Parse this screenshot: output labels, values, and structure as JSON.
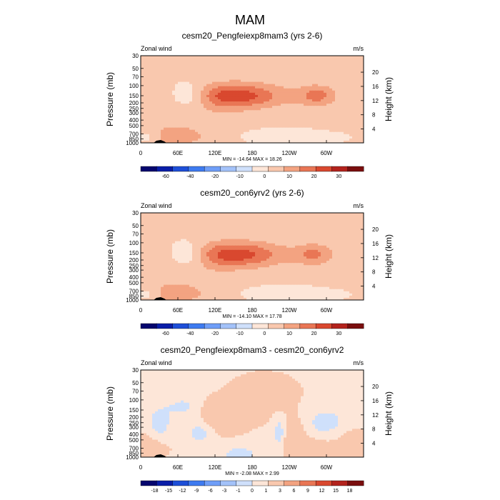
{
  "figure": {
    "title": "MAM"
  },
  "chart_data": [
    {
      "type": "heatmap",
      "title": "cesm20_Pengfeiexp8mam3 (yrs 2-6)",
      "left_label": "Zonal wind",
      "right_label": "m/s",
      "ylabel": "Pressure (mb)",
      "ylabel_right": "Height (km)",
      "x_ticks": [
        "0",
        "60E",
        "120E",
        "180",
        "120W",
        "60W"
      ],
      "y_ticks": [
        "30",
        "50",
        "70",
        "100",
        "150",
        "200",
        "250",
        "300",
        "400",
        "500",
        "700",
        "850",
        "1000"
      ],
      "height_ticks": [
        "4",
        "8",
        "12",
        "16",
        "20"
      ],
      "stats": "MIN = -14.64  MAX =  18.26",
      "colorbar_labels": [
        "-60",
        "-40",
        "-20",
        "-10",
        "0",
        "10",
        "20",
        "30"
      ],
      "features": [
        {
          "lon": 150,
          "p": 150,
          "lonw": 55,
          "lpw": 0.36,
          "amp": 18
        },
        {
          "lon": 285,
          "p": 150,
          "lonw": 22,
          "lpw": 0.3,
          "amp": 11
        },
        {
          "lon": 55,
          "p": 500,
          "lonw": 70,
          "lpw": 0.55,
          "amp": 4
        },
        {
          "lon": 60,
          "p": 800,
          "lonw": 30,
          "lpw": 0.2,
          "amp": 6
        },
        {
          "lon": 80,
          "p": 150,
          "lonw": 22,
          "lpw": 0.35,
          "amp": -10
        },
        {
          "lon": 260,
          "p": 820,
          "lonw": 40,
          "lpw": 0.15,
          "amp": -4
        },
        {
          "lon": 10,
          "p": 780,
          "lonw": 14,
          "lpw": 0.2,
          "amp": -5
        },
        {
          "lon": 180,
          "p": 700,
          "lonw": 70,
          "lpw": 0.3,
          "amp": -1.5
        }
      ]
    },
    {
      "type": "heatmap",
      "title": "cesm20_con6yrv2 (yrs 2-6)",
      "left_label": "Zonal wind",
      "right_label": "m/s",
      "ylabel": "Pressure (mb)",
      "ylabel_right": "Height (km)",
      "x_ticks": [
        "0",
        "60E",
        "120E",
        "180",
        "120W",
        "60W"
      ],
      "y_ticks": [
        "30",
        "50",
        "70",
        "100",
        "150",
        "200",
        "250",
        "300",
        "400",
        "500",
        "700",
        "850",
        "1000"
      ],
      "height_ticks": [
        "4",
        "8",
        "12",
        "16",
        "20"
      ],
      "stats": "MIN = -14.10  MAX =  17.78",
      "colorbar_labels": [
        "-60",
        "-40",
        "-20",
        "-10",
        "0",
        "10",
        "20",
        "30"
      ],
      "features": [
        {
          "lon": 150,
          "p": 160,
          "lonw": 55,
          "lpw": 0.36,
          "amp": 17.5
        },
        {
          "lon": 280,
          "p": 160,
          "lonw": 22,
          "lpw": 0.3,
          "amp": 10
        },
        {
          "lon": 55,
          "p": 500,
          "lonw": 70,
          "lpw": 0.55,
          "amp": 4
        },
        {
          "lon": 60,
          "p": 800,
          "lonw": 30,
          "lpw": 0.2,
          "amp": 6
        },
        {
          "lon": 78,
          "p": 160,
          "lonw": 22,
          "lpw": 0.35,
          "amp": -10
        },
        {
          "lon": 260,
          "p": 820,
          "lonw": 40,
          "lpw": 0.15,
          "amp": -4
        },
        {
          "lon": 10,
          "p": 780,
          "lonw": 14,
          "lpw": 0.2,
          "amp": -5
        },
        {
          "lon": 180,
          "p": 700,
          "lonw": 70,
          "lpw": 0.3,
          "amp": -1.5
        }
      ]
    },
    {
      "type": "heatmap",
      "title": "cesm20_Pengfeiexp8mam3 - cesm20_con6yrv2",
      "left_label": "Zonal wind",
      "right_label": "m/s",
      "ylabel": "Pressure (mb)",
      "ylabel_right": "Height (km)",
      "x_ticks": [
        "0",
        "60E",
        "120E",
        "180",
        "120W",
        "60W"
      ],
      "y_ticks": [
        "30",
        "50",
        "70",
        "100",
        "150",
        "200",
        "250",
        "300",
        "400",
        "500",
        "700",
        "850",
        "1000"
      ],
      "height_ticks": [
        "4",
        "8",
        "12",
        "16",
        "20"
      ],
      "stats": "MIN =  -2.08  MAX =   2.99",
      "colorbar_labels": [
        "-18",
        "-15",
        "-12",
        "-9",
        "-6",
        "-3",
        "-1",
        "0",
        "1",
        "3",
        "6",
        "9",
        "12",
        "15",
        "18"
      ],
      "features": [
        {
          "lon": 180,
          "p": 150,
          "lonw": 180,
          "lpw": 2.0,
          "amp": 0.4
        },
        {
          "lon": 200,
          "p": 80,
          "lonw": 25,
          "lpw": 0.4,
          "amp": 2.0
        },
        {
          "lon": 245,
          "p": 400,
          "lonw": 15,
          "lpw": 0.5,
          "amp": 1.5
        },
        {
          "lon": 120,
          "p": 200,
          "lonw": 25,
          "lpw": 0.4,
          "amp": 1.2
        },
        {
          "lon": 30,
          "p": 300,
          "lonw": 15,
          "lpw": 0.6,
          "amp": -1.5
        },
        {
          "lon": 95,
          "p": 350,
          "lonw": 15,
          "lpw": 0.4,
          "amp": -1.5
        },
        {
          "lon": 160,
          "p": 900,
          "lonw": 20,
          "lpw": 0.25,
          "amp": -1.5
        },
        {
          "lon": 225,
          "p": 400,
          "lonw": 8,
          "lpw": 0.5,
          "amp": -2.0
        },
        {
          "lon": 300,
          "p": 250,
          "lonw": 30,
          "lpw": 0.5,
          "amp": -1.3
        },
        {
          "lon": 20,
          "p": 600,
          "lonw": 20,
          "lpw": 0.4,
          "amp": 1.3
        },
        {
          "lon": 270,
          "p": 700,
          "lonw": 30,
          "lpw": 0.3,
          "amp": 1.2
        },
        {
          "lon": 70,
          "p": 130,
          "lonw": 20,
          "lpw": 0.3,
          "amp": -1.2
        },
        {
          "lon": 340,
          "p": 550,
          "lonw": 20,
          "lpw": 0.5,
          "amp": 1.0
        }
      ]
    }
  ]
}
